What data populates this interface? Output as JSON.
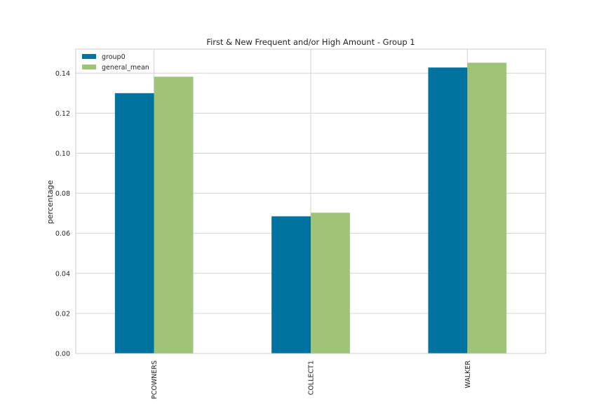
{
  "chart_data": {
    "type": "bar",
    "title": "First & New Frequent and/or High Amount - Group 1",
    "xlabel": "",
    "ylabel": "percentage",
    "categories": [
      "PCOWNERS",
      "COLLECT1",
      "WALKER"
    ],
    "series": [
      {
        "name": "group0",
        "values": [
          0.13,
          0.0685,
          0.1428
        ],
        "color": "#0072a0"
      },
      {
        "name": "general_mean",
        "values": [
          0.1382,
          0.0703,
          0.1452
        ],
        "color": "#9fc377"
      }
    ],
    "ylim": [
      0,
      0.152
    ],
    "yticks": [
      "0.00",
      "0.02",
      "0.04",
      "0.06",
      "0.08",
      "0.10",
      "0.12",
      "0.14"
    ],
    "grid": true,
    "legend_position": "top-left",
    "background": "#ffffff",
    "gridcolor": "#d3d3d3"
  }
}
